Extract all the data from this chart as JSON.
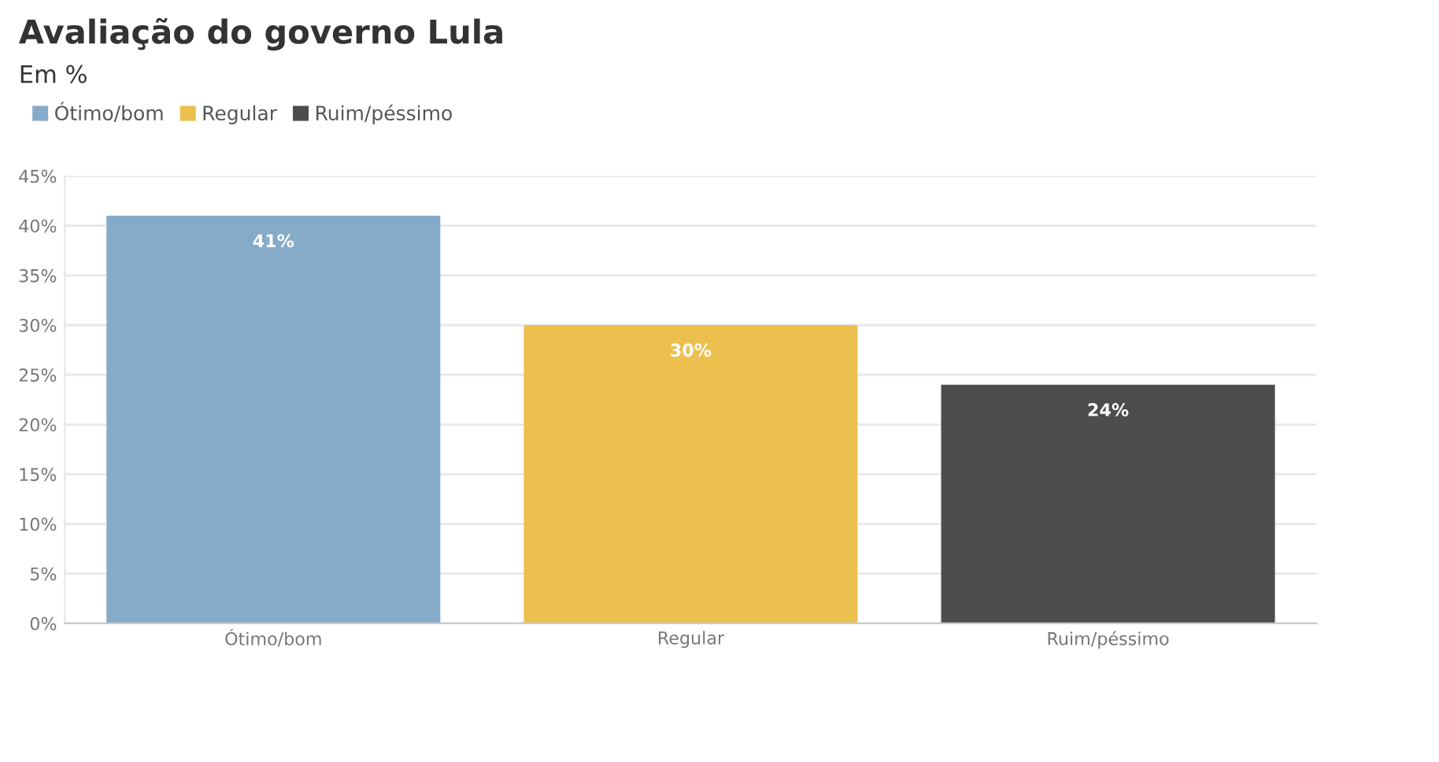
{
  "chart_data": {
    "type": "bar",
    "title": "Avaliação do governo Lula",
    "subtitle": "Em %",
    "categories": [
      "Ótimo/bom",
      "Regular",
      "Ruim/péssimo"
    ],
    "series": [
      {
        "name": "Ótimo/bom",
        "color": "#86abc9",
        "values": [
          41,
          null,
          null
        ],
        "value_labels": [
          "41%",
          null,
          null
        ]
      },
      {
        "name": "Regular",
        "color": "#ecc04f",
        "values": [
          null,
          30,
          null
        ],
        "value_labels": [
          null,
          "30%",
          null
        ]
      },
      {
        "name": "Ruim/péssimo",
        "color": "#4d4d4d",
        "values": [
          null,
          null,
          24
        ],
        "value_labels": [
          null,
          null,
          "24%"
        ]
      }
    ],
    "ylim": [
      0,
      45
    ],
    "yticks": [
      {
        "value": 0,
        "label": "0%"
      },
      {
        "value": 5,
        "label": "5%"
      },
      {
        "value": 10,
        "label": "10%"
      },
      {
        "value": 15,
        "label": "15%"
      },
      {
        "value": 20,
        "label": "20%"
      },
      {
        "value": 25,
        "label": "25%"
      },
      {
        "value": 30,
        "label": "30%"
      },
      {
        "value": 35,
        "label": "35%"
      },
      {
        "value": 40,
        "label": "40%"
      },
      {
        "value": 45,
        "label": "45%"
      }
    ],
    "grid": "y",
    "legend": "top left"
  }
}
